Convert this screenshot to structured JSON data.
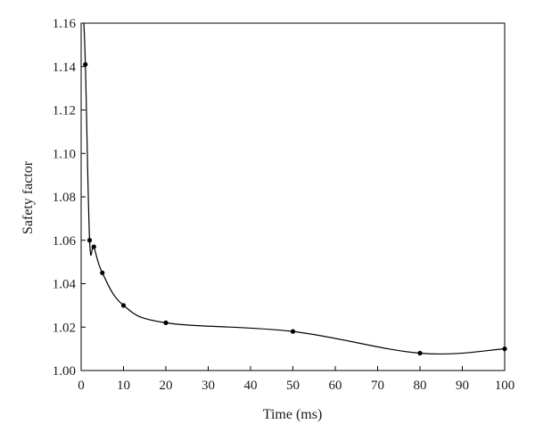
{
  "chart_data": {
    "type": "line",
    "title": "",
    "xlabel": "Time (ms)",
    "ylabel": "Safety factor",
    "xlim": [
      0,
      100
    ],
    "ylim": [
      1.0,
      1.16
    ],
    "x_ticks": [
      0,
      10,
      20,
      30,
      40,
      50,
      60,
      70,
      80,
      90,
      100
    ],
    "x_tick_labels": [
      "0",
      "10",
      "20",
      "30",
      "40",
      "50",
      "60",
      "70",
      "80",
      "90",
      "100"
    ],
    "y_ticks": [
      1.0,
      1.02,
      1.04,
      1.06,
      1.08,
      1.1,
      1.12,
      1.14,
      1.16
    ],
    "y_tick_labels": [
      "1.00",
      "1.02",
      "1.04",
      "1.06",
      "1.08",
      "1.10",
      "1.12",
      "1.14",
      "1.16"
    ],
    "grid": false,
    "legend": "none",
    "line_color": "#000000",
    "series": [
      {
        "x": [
          1,
          2,
          3,
          5,
          10,
          20,
          50,
          80,
          100
        ],
        "y": [
          1.141,
          1.06,
          1.057,
          1.045,
          1.03,
          1.022,
          1.018,
          1.008,
          1.01
        ]
      }
    ]
  }
}
